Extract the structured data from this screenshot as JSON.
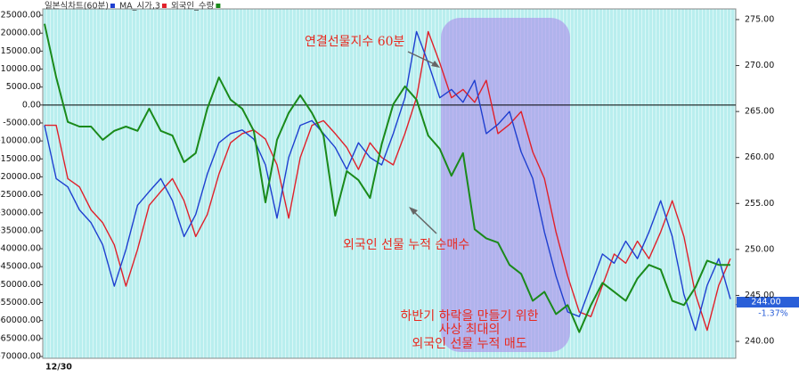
{
  "chart_data": {
    "type": "line",
    "legend": [
      {
        "name": "일본식차트(60분)",
        "color": "#1f3fd0"
      },
      {
        "name": "MA_시가,3",
        "color": "#e0202a"
      },
      {
        "name": "외국인_수량",
        "color": "#1a8a1a"
      }
    ],
    "annotations": [
      "연결선물지수 60분",
      "외국인 선물 누적 순매수",
      "하반기 하락을 만들기 위한",
      "사상 최대의",
      "외국인 선물 누적 매도"
    ],
    "last_price": {
      "label": "244.00",
      "change": "-1.37%",
      "value": 244
    },
    "categories": [
      "12/30",
      null,
      null,
      null,
      null,
      null,
      null,
      null,
      null,
      null,
      null,
      null,
      null,
      null,
      null,
      null,
      null,
      null,
      null,
      null,
      null,
      null,
      null,
      null,
      null,
      null,
      null,
      null,
      null,
      null,
      null,
      null,
      null,
      null,
      null,
      null,
      null,
      null,
      null,
      null,
      null,
      null,
      null,
      null,
      null,
      null,
      null,
      null,
      null,
      null,
      null,
      null,
      null,
      null,
      null,
      null,
      null,
      null,
      null,
      null
    ],
    "series": [
      {
        "name": "일본식차트(60분)",
        "color": "#1f3fd0",
        "axis": "y2",
        "values": [
          263.5,
          257.7,
          256.8,
          254.3,
          252.9,
          250.5,
          246,
          250,
          254.8,
          256.3,
          257.7,
          255.3,
          251.4,
          253.8,
          258.2,
          261.6,
          262.6,
          263,
          262,
          259.2,
          253.4,
          260,
          263.5,
          264,
          262.6,
          261.1,
          258.7,
          261.6,
          260,
          259.2,
          262.6,
          266.5,
          273.7,
          270.3,
          266.5,
          267.4,
          266,
          268.4,
          262.6,
          263.6,
          265,
          260.6,
          257.7,
          251.9,
          247.1,
          243.2,
          242.7,
          246.1,
          249.5,
          248.5,
          250.9,
          249,
          251.9,
          255.3,
          251.4,
          245.1,
          241.2,
          246.1,
          249,
          244.6
        ]
      },
      {
        "name": "MA_시가,3",
        "color": "#e0202a",
        "axis": "y2",
        "values": [
          263.5,
          263.5,
          257.7,
          256.8,
          254.3,
          252.9,
          250.5,
          246,
          250,
          254.8,
          256.3,
          257.7,
          255.3,
          251.4,
          253.8,
          258.2,
          261.6,
          262.6,
          263,
          262,
          259.2,
          253.4,
          260,
          263.5,
          264,
          262.6,
          261.1,
          258.7,
          261.6,
          260,
          259.2,
          262.6,
          266.5,
          273.7,
          270.3,
          266.5,
          267.4,
          266,
          268.4,
          262.6,
          263.6,
          265,
          260.6,
          257.7,
          251.9,
          247.1,
          243.2,
          242.7,
          246.1,
          249.5,
          248.5,
          250.9,
          249,
          251.9,
          255.3,
          251.4,
          245.1,
          241.2,
          246.1,
          249
        ]
      },
      {
        "name": "외국인_수량",
        "color": "#1a8a1a",
        "axis": "y",
        "values": [
          22600,
          7700,
          -4700,
          -6000,
          -6000,
          -9700,
          -7200,
          -6000,
          -7200,
          -1000,
          -7200,
          -8500,
          -15900,
          -13400,
          -1000,
          7700,
          1500,
          -1000,
          -7200,
          -27100,
          -9700,
          -2200,
          2700,
          -2200,
          -8500,
          -30800,
          -18400,
          -20900,
          -25900,
          -10900,
          200,
          5200,
          1500,
          -8500,
          -12200,
          -19700,
          -13400,
          -34600,
          -37100,
          -38300,
          -44500,
          -47000,
          -54500,
          -52000,
          -58200,
          -55700,
          -63200,
          -55700,
          -49500,
          -52000,
          -54500,
          -48300,
          -44500,
          -45800,
          -54500,
          -55700,
          -50700,
          -43300,
          -44500,
          -44500
        ]
      }
    ],
    "ylim": [
      -70500,
      26750
    ],
    "yticks": [
      {
        "value": 25000,
        "label": "25000.00"
      },
      {
        "value": 20000,
        "label": "20000.00"
      },
      {
        "value": 15000,
        "label": "15000.00"
      },
      {
        "value": 10000,
        "label": "10000.00"
      },
      {
        "value": 5000,
        "label": "5000.00"
      },
      {
        "value": 0,
        "label": "0.00"
      },
      {
        "value": -5000,
        "label": "-5000.00"
      },
      {
        "value": -10000,
        "label": "-10000.00"
      },
      {
        "value": -15000,
        "label": "-15000.00"
      },
      {
        "value": -20000,
        "label": "-20000.00"
      },
      {
        "value": -25000,
        "label": "-25000.00"
      },
      {
        "value": -30000,
        "label": "-30000.00"
      },
      {
        "value": -35000,
        "label": "-35000.00"
      },
      {
        "value": -40000,
        "label": "-40000.00"
      },
      {
        "value": -45000,
        "label": "-45000.00"
      },
      {
        "value": -50000,
        "label": "-50000.00"
      },
      {
        "value": -55000,
        "label": "-55000.00"
      },
      {
        "value": -60000,
        "label": "-60000.00"
      },
      {
        "value": -65000,
        "label": "-65000.00"
      },
      {
        "value": -70000,
        "label": "-70000.00"
      }
    ],
    "y2lim": [
      238.16,
      276.16
    ],
    "y2ticks": [
      {
        "value": 275,
        "label": "275.00"
      },
      {
        "value": 270,
        "label": "270.00"
      },
      {
        "value": 265,
        "label": "265.00"
      },
      {
        "value": 260,
        "label": "260.00"
      },
      {
        "value": 255,
        "label": "255.00"
      },
      {
        "value": 250,
        "label": "250.00"
      },
      {
        "value": 245,
        "label": "245.00"
      },
      {
        "value": 240,
        "label": "240.00"
      }
    ]
  }
}
